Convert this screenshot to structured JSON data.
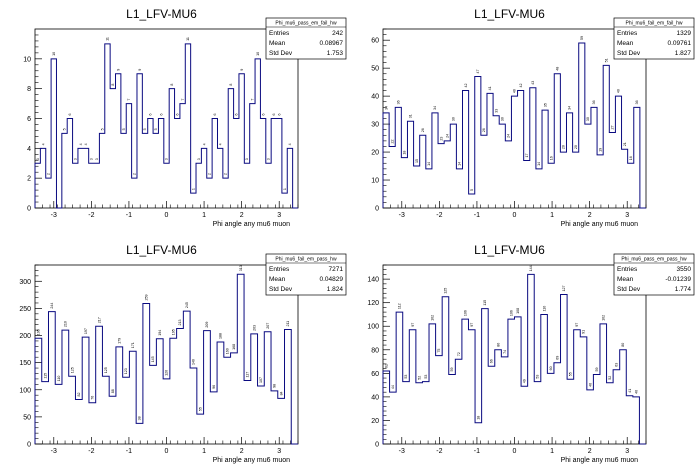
{
  "chart_data": [
    {
      "type": "histogram",
      "title": "L1_LFV-MU6",
      "xlabel": "Phi angle any mu6 muon",
      "ylabel": "",
      "xlim": [
        -3.5,
        3.5
      ],
      "ylim": [
        0,
        12
      ],
      "yticks": [
        0,
        2,
        4,
        6,
        8,
        10
      ],
      "xticks": [
        -3,
        -2,
        -1,
        0,
        1,
        2,
        3
      ],
      "stats": {
        "name": "Phi_mu6_pass_em_fail_hw",
        "entries": "242",
        "mean": "0.08967",
        "std_dev": "1.753"
      },
      "values": [
        3,
        4,
        2,
        10,
        0,
        5,
        6,
        3,
        4,
        4,
        3,
        3,
        5,
        11,
        8,
        9,
        5,
        7,
        2,
        9,
        5,
        6,
        5,
        6,
        3,
        8,
        6,
        7,
        11,
        1,
        3,
        4,
        2,
        6,
        4,
        2,
        8,
        6,
        9,
        3,
        7,
        10,
        6,
        3,
        6,
        6,
        1,
        4,
        0
      ]
    },
    {
      "type": "histogram",
      "title": "L1_LFV-MU6",
      "xlabel": "Phi angle any mu6 muon",
      "ylabel": "",
      "xlim": [
        -3.5,
        3.5
      ],
      "ylim": [
        0,
        64
      ],
      "yticks": [
        0,
        10,
        20,
        30,
        40,
        50,
        60
      ],
      "xticks": [
        -3,
        -2,
        -1,
        0,
        1,
        2,
        3
      ],
      "stats": {
        "name": "Phi_mu6_fail_em_fail_hw",
        "entries": "1329",
        "mean": "0.09761",
        "std_dev": "1.827"
      },
      "values": [
        34,
        22,
        36,
        18,
        31,
        15,
        26,
        14,
        34,
        23,
        24,
        30,
        14,
        42,
        5,
        47,
        26,
        41,
        33,
        30,
        24,
        40,
        42,
        17,
        43,
        14,
        35,
        16,
        48,
        20,
        34,
        20,
        59,
        30,
        36,
        19,
        51,
        27,
        40,
        21,
        16,
        36,
        0
      ]
    },
    {
      "type": "histogram",
      "title": "L1_LFV-MU6",
      "xlabel": "Phi angle any mu6 muon",
      "ylabel": "",
      "xlim": [
        -3.5,
        3.5
      ],
      "ylim": [
        0,
        330
      ],
      "yticks": [
        0,
        50,
        100,
        150,
        200,
        250,
        300
      ],
      "xticks": [
        -3,
        -2,
        -1,
        0,
        1,
        2,
        3
      ],
      "stats": {
        "name": "Phi_mu6_fail_em_pass_hw",
        "entries": "7271",
        "mean": "0.04829",
        "std_dev": "1.824"
      },
      "values": [
        195,
        115,
        244,
        110,
        210,
        125,
        82,
        197,
        76,
        217,
        125,
        88,
        179,
        123,
        171,
        38,
        259,
        145,
        194,
        120,
        195,
        213,
        245,
        140,
        55,
        209,
        96,
        188,
        160,
        168,
        313,
        117,
        203,
        107,
        207,
        98,
        84,
        211,
        0
      ]
    },
    {
      "type": "histogram",
      "title": "L1_LFV-MU6",
      "xlabel": "Phi angle any mu6 muon",
      "ylabel": "",
      "xlim": [
        -3.5,
        3.5
      ],
      "ylim": [
        0,
        152
      ],
      "yticks": [
        0,
        20,
        40,
        60,
        80,
        100,
        120,
        140
      ],
      "xticks": [
        -3,
        -2,
        -1,
        0,
        1,
        2,
        3
      ],
      "stats": {
        "name": "Phi_mu6_pass_em_pass_hw",
        "entries": "3550",
        "mean": "-0.01239",
        "std_dev": "1.774"
      },
      "values": [
        62,
        44,
        112,
        53,
        97,
        52,
        53,
        102,
        75,
        125,
        59,
        72,
        106,
        97,
        18,
        115,
        66,
        80,
        74,
        106,
        108,
        49,
        144,
        53,
        110,
        60,
        69,
        127,
        55,
        97,
        91,
        46,
        59,
        102,
        52,
        63,
        80,
        41,
        40,
        0
      ]
    }
  ]
}
